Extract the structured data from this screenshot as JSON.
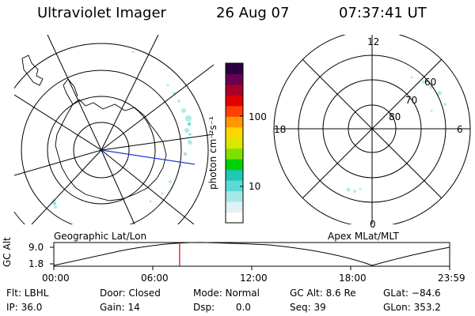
{
  "header": {
    "title": "Ultraviolet Imager",
    "date": "26 Aug 07",
    "time": "07:37:41 UT"
  },
  "panels": {
    "geo_label": "Geographic Lat/Lon",
    "apex_label": "Apex MLat/MLT",
    "mlt_labels": {
      "top": "12",
      "left": "18",
      "right": "6",
      "bottom": "0"
    },
    "mlat_labels": [
      "60",
      "70",
      "80"
    ]
  },
  "colorbar": {
    "unit_label": "photon cm⁻²s⁻¹",
    "ticks": [
      "100",
      "10"
    ],
    "colors": [
      "#ffffff",
      "#e0f2f2",
      "#a6e8e8",
      "#5dd8d8",
      "#1ec8b4",
      "#00d000",
      "#7ee000",
      "#d8e800",
      "#ffd700",
      "#ff9800",
      "#ff4000",
      "#e00000",
      "#a8002a",
      "#6a0050",
      "#2a0040"
    ]
  },
  "timeline": {
    "axis_label": "GC Alt",
    "y_ticks": [
      "9.0",
      "1.8"
    ],
    "x_ticks": [
      "00:00",
      "06:00",
      "12:00",
      "18:00",
      "23:59"
    ],
    "current_time_hours": 7.628,
    "cursor_color": "#e00000"
  },
  "info": {
    "flt": "Flt: LBHL",
    "ip": "IP: 36.0",
    "door": "Door: Closed",
    "gain": "Gain: 14",
    "mode": "Mode: Normal",
    "dsp": "Dsp:       0.0",
    "gcalt": "GC Alt: 8.6 Re",
    "seq": "Seq: 39",
    "glat": "GLat: −84.6",
    "glon": "GLon: 353.2"
  }
}
